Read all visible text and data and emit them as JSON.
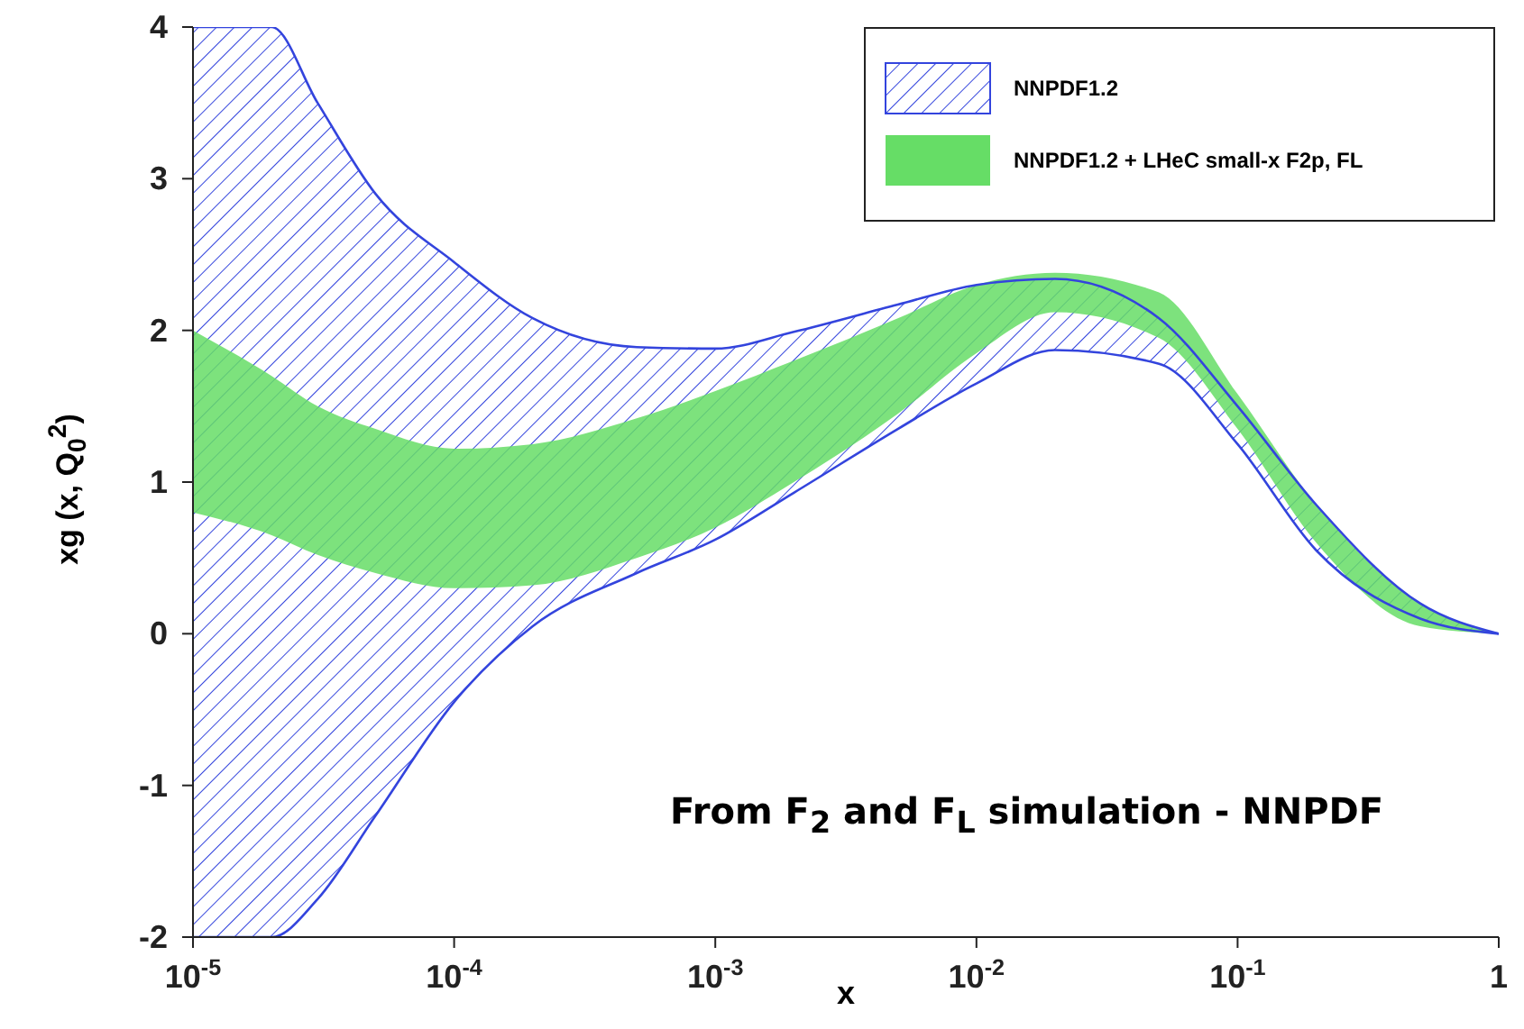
{
  "chart_data": {
    "type": "area",
    "xlabel": "x",
    "ylabel": "xg (x, Q$_{0}$$^{2}$)",
    "log": "x",
    "x": [
      1e-05,
      2e-05,
      3e-05,
      5e-05,
      0.0001,
      0.0002,
      0.0005,
      0.001,
      0.002,
      0.005,
      0.01,
      0.02,
      0.05,
      0.1,
      0.2,
      0.5,
      1
    ],
    "xlim": [
      1e-05,
      1
    ],
    "xticks": [
      {
        "value": 1e-05,
        "label": "10$^{-5}$"
      },
      {
        "value": 0.0001,
        "label": "10$^{-4}$"
      },
      {
        "value": 0.001,
        "label": "10$^{-3}$"
      },
      {
        "value": 0.01,
        "label": "10$^{-2}$"
      },
      {
        "value": 0.1,
        "label": "10$^{-1}$"
      },
      1
    ],
    "ylim": [
      -2,
      4
    ],
    "yticks": [
      -2,
      -1,
      0,
      1,
      2,
      3,
      4
    ],
    "series": [
      {
        "name": "NNPDF1.2",
        "color": "#3344dd",
        "values": [
          null,
          null,
          null,
          null,
          null,
          null,
          null,
          null,
          null,
          null,
          null,
          null,
          null,
          null,
          null,
          null,
          null
        ],
        "lower": [
          -2,
          -2,
          -1.75,
          -1.2,
          -0.45,
          0.05,
          0.4,
          0.62,
          0.93,
          1.35,
          1.65,
          1.87,
          1.78,
          1.25,
          0.55,
          0.1,
          0
        ],
        "upper": [
          4,
          4,
          3.5,
          2.9,
          2.45,
          2.08,
          1.89,
          1.88,
          1.99,
          2.17,
          2.3,
          2.34,
          2.08,
          1.5,
          0.85,
          0.2,
          0
        ]
      },
      {
        "name": "NNPDF1.2 + LHeC small-x F2p, FL",
        "color": "#66dd66",
        "values": [
          null,
          null,
          null,
          null,
          null,
          null,
          null,
          null,
          null,
          null,
          null,
          null,
          null,
          null,
          null,
          null,
          null
        ],
        "lower": [
          0.8,
          0.65,
          0.52,
          0.4,
          0.3,
          0.32,
          0.5,
          0.7,
          1.0,
          1.45,
          1.85,
          2.12,
          1.95,
          1.35,
          0.6,
          0.05,
          0
        ],
        "upper": [
          2.0,
          1.7,
          1.5,
          1.35,
          1.22,
          1.25,
          1.42,
          1.6,
          1.8,
          2.08,
          2.3,
          2.38,
          2.25,
          1.58,
          0.85,
          0.2,
          0
        ]
      },
      {
        "type": "line",
        "color": "#3344dd",
        "values": [
          4,
          4,
          3.5,
          2.9,
          2.45,
          2.08,
          1.89,
          1.88,
          1.99,
          2.17,
          2.3,
          2.34,
          2.08,
          1.5,
          0.85,
          0.2,
          0
        ]
      },
      {
        "type": "line",
        "color": "#3344dd",
        "values": [
          -2,
          -2,
          -1.75,
          -1.2,
          -0.45,
          0.05,
          0.4,
          0.62,
          0.93,
          1.35,
          1.65,
          1.87,
          1.78,
          1.25,
          0.55,
          0.1,
          0
        ]
      }
    ],
    "legend": "top right",
    "annotations": [
      "From F$_{2}$ and F$_{L}$ simulation - NNPDF"
    ]
  }
}
